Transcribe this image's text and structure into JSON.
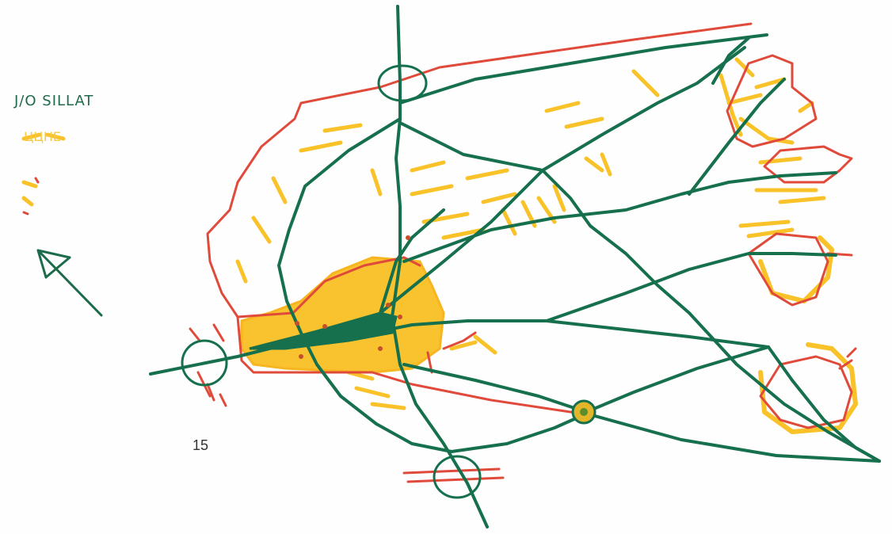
{
  "legend": {
    "bridges_label": "J/O SILLAT",
    "yellow_label": "ЦЦНЕ"
  },
  "page": {
    "number": "15"
  },
  "colors": {
    "green_network": "#16704d",
    "red_boundary": "#e04a3a",
    "yellow_zones": "#f8c228",
    "north_arrow": "#1d6b4a"
  }
}
